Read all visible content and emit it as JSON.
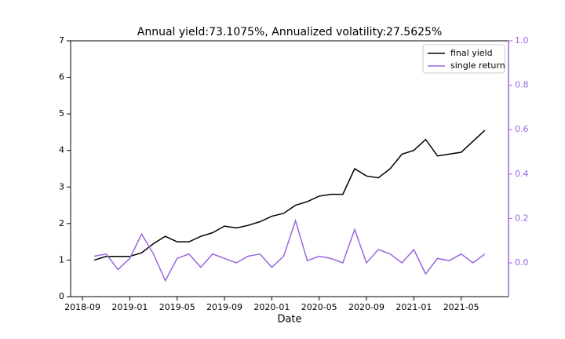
{
  "chart_data": {
    "type": "line",
    "title": "Annual yield:73.1075%, Annualized volatility:27.5625%",
    "xlabel": "Date",
    "x": [
      "2018-10",
      "2018-11",
      "2018-12",
      "2019-01",
      "2019-02",
      "2019-03",
      "2019-04",
      "2019-05",
      "2019-06",
      "2019-07",
      "2019-08",
      "2019-09",
      "2019-10",
      "2019-11",
      "2019-12",
      "2020-01",
      "2020-02",
      "2020-03",
      "2020-04",
      "2020-05",
      "2020-06",
      "2020-07",
      "2020-08",
      "2020-09",
      "2020-10",
      "2020-11",
      "2020-12",
      "2021-01",
      "2021-02",
      "2021-03",
      "2021-04",
      "2021-05",
      "2021-06",
      "2021-07"
    ],
    "series": [
      {
        "name": "final yield",
        "color": "#000000",
        "axis": "y",
        "values": [
          1.0,
          1.1,
          1.1,
          1.1,
          1.2,
          1.45,
          1.65,
          1.5,
          1.5,
          1.65,
          1.75,
          1.93,
          1.88,
          1.95,
          2.05,
          2.2,
          2.28,
          2.5,
          2.6,
          2.75,
          2.8,
          2.8,
          3.5,
          3.3,
          3.25,
          3.5,
          3.9,
          4.0,
          4.3,
          3.85,
          3.9,
          3.95,
          4.25,
          4.55
        ]
      },
      {
        "name": "single return",
        "color": "#9966dd",
        "axis": "y2",
        "values": [
          0.03,
          0.04,
          -0.03,
          0.02,
          0.13,
          0.04,
          -0.08,
          0.02,
          0.04,
          -0.02,
          0.04,
          0.02,
          0.0,
          0.03,
          0.04,
          -0.02,
          0.03,
          0.19,
          0.01,
          0.03,
          0.02,
          0.0,
          0.15,
          0.0,
          0.06,
          0.04,
          0.0,
          0.06,
          -0.05,
          0.02,
          0.01,
          0.04,
          0.0,
          0.04
        ]
      }
    ],
    "xlim": [
      "2018-08",
      "2021-09"
    ],
    "xticks": [
      "2018-09",
      "2019-01",
      "2019-05",
      "2019-09",
      "2020-01",
      "2020-05",
      "2020-09",
      "2021-01",
      "2021-05"
    ],
    "ylim": [
      0,
      7
    ],
    "yticks": [
      0,
      1,
      2,
      3,
      4,
      5,
      6,
      7
    ],
    "y2lim": [
      -0.152,
      1.0
    ],
    "y2ticks": [
      {
        "value": 0,
        "label": "0.0"
      },
      {
        "value": 0.2,
        "label": "0.2"
      },
      {
        "value": 0.4,
        "label": "0.4"
      },
      {
        "value": 0.6,
        "label": "0.6"
      },
      {
        "value": 0.8,
        "label": "0.8"
      },
      {
        "value": 1.0,
        "label": "1.0"
      }
    ],
    "y2color": "#9966dd",
    "legend": "upper right"
  }
}
